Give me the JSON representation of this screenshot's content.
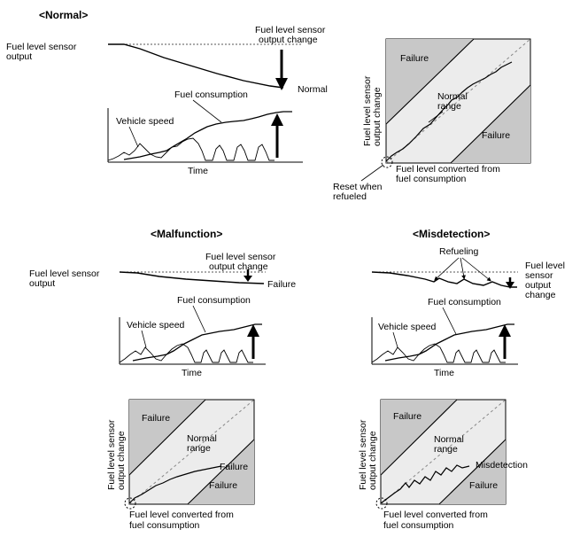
{
  "sections": {
    "normal": "<Normal>",
    "malfunction": "<Malfunction>",
    "misdetection": "<Misdetection>"
  },
  "labels": {
    "fuel_sensor_output": [
      "Fuel level sensor",
      "output"
    ],
    "sensor_output_change_2line": [
      "Fuel level sensor",
      "output change"
    ],
    "sensor_output_change_4line": [
      "Fuel level",
      "sensor",
      "output",
      "change"
    ],
    "fuel_consumption": "Fuel consumption",
    "vehicle_speed": "Vehicle speed",
    "time": "Time",
    "normal": "Normal",
    "failure": "Failure",
    "refueling": "Refueling",
    "misdetection": "Misdetection",
    "normal_range": [
      "Normal",
      "range"
    ],
    "y_axis": [
      "Fuel level sensor",
      "output change"
    ],
    "x_axis": [
      "Fuel level converted from",
      "fuel consumption"
    ],
    "reset": [
      "Reset when",
      "refueled"
    ]
  },
  "colors": {
    "failure_zone": "#c8c8c8",
    "normal_zone": "#ececec",
    "ink": "#000000",
    "reference": "#888888"
  }
}
